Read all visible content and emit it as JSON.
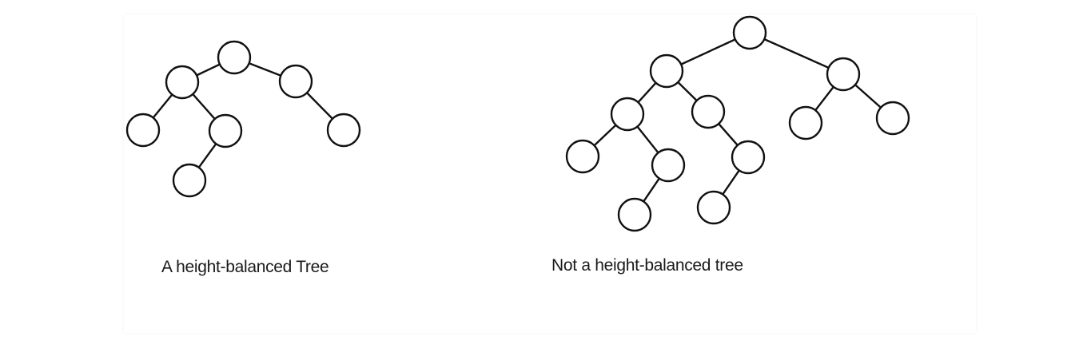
{
  "diagrams": [
    {
      "caption": "A height-balanced Tree",
      "tree": {
        "children": [
          {
            "children": [
              {
                "children": []
              },
              {
                "children": [
                  {
                    "children": []
                  }
                ]
              }
            ]
          },
          {
            "children": [
              {
                "children": []
              }
            ]
          }
        ]
      }
    },
    {
      "caption": "Not a height-balanced tree",
      "tree": {
        "children": [
          {
            "children": [
              {
                "children": [
                  {
                    "children": []
                  },
                  {
                    "children": [
                      {
                        "children": []
                      }
                    ]
                  }
                ]
              },
              {
                "children": [
                  {
                    "children": [
                      {
                        "children": []
                      }
                    ]
                  }
                ]
              }
            ]
          },
          {
            "children": [
              {
                "children": []
              },
              {
                "children": []
              }
            ]
          }
        ]
      }
    }
  ]
}
